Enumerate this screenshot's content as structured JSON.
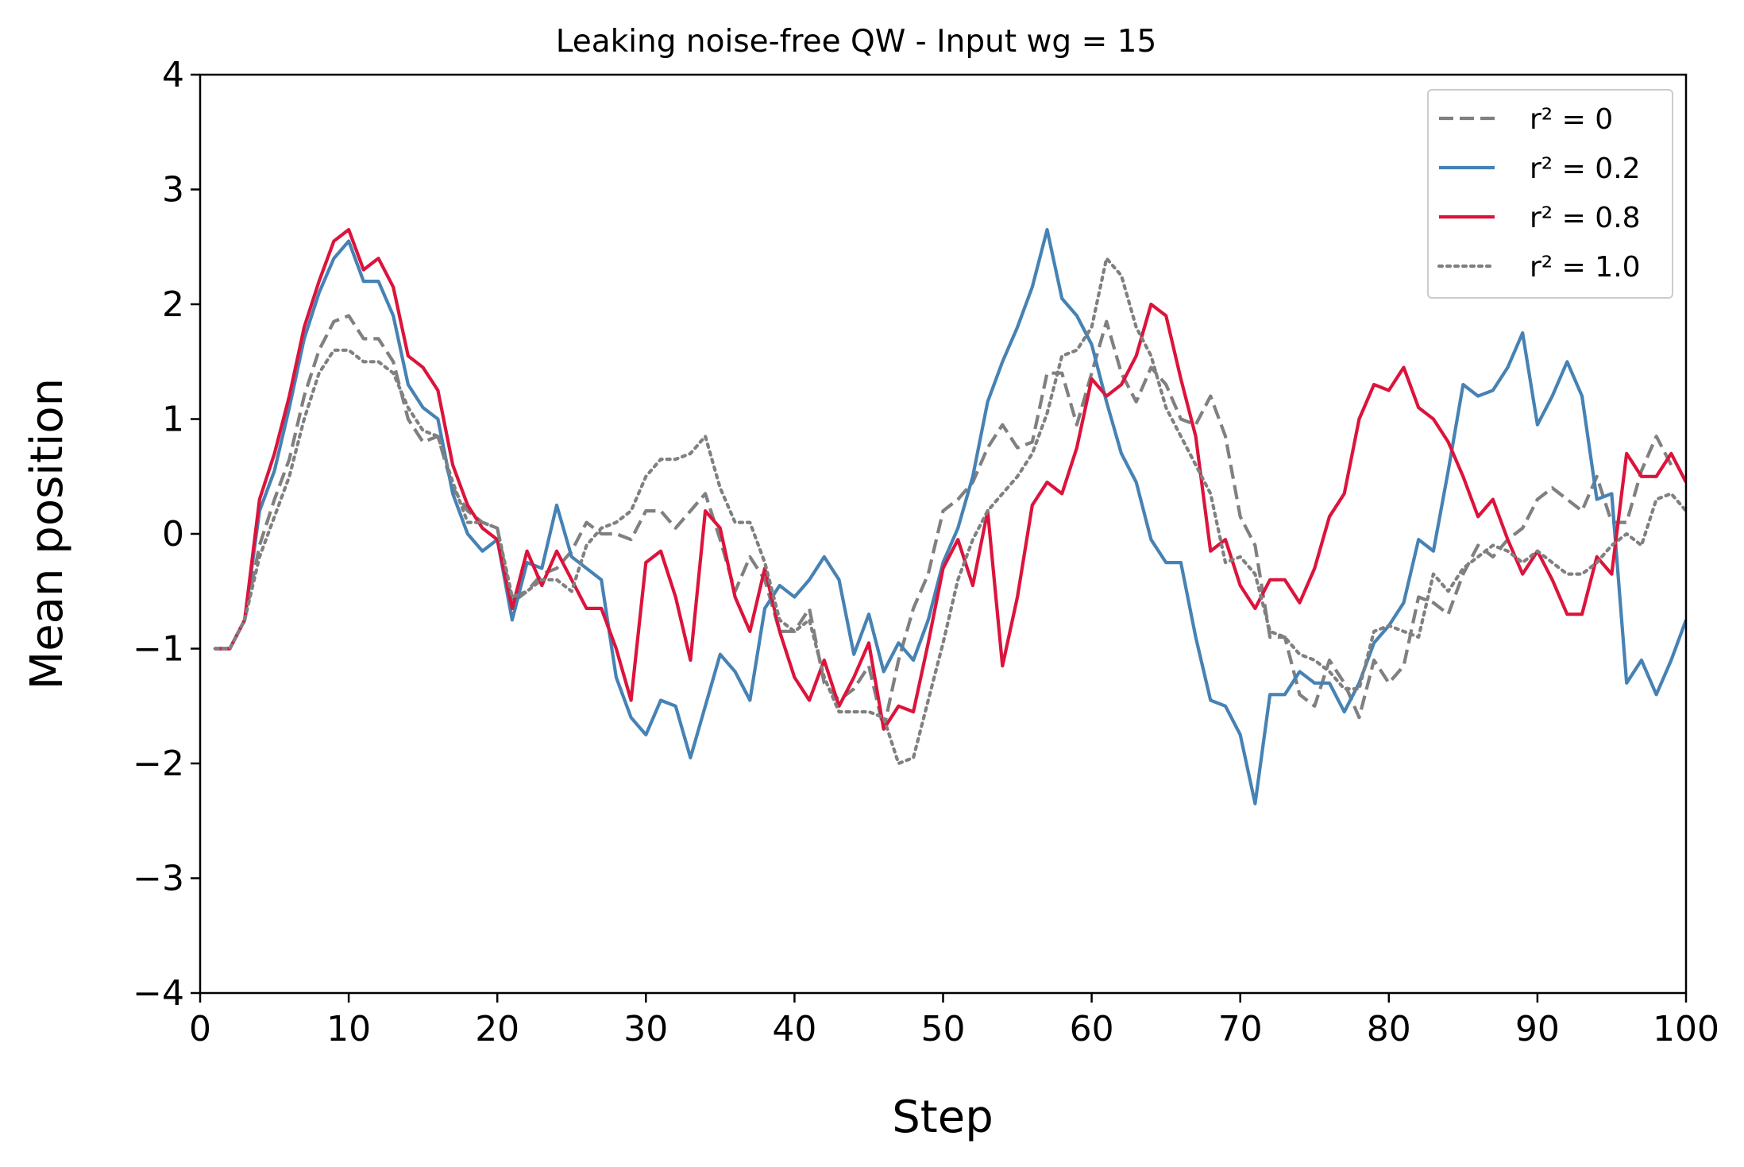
{
  "chart_data": {
    "type": "line",
    "title": "Leaking noise-free QW - Input wg = 15",
    "xlabel": "Step",
    "ylabel": "Mean position",
    "xlim": [
      0,
      100
    ],
    "ylim": [
      -4,
      4
    ],
    "xticks": [
      0,
      10,
      20,
      30,
      40,
      50,
      60,
      70,
      80,
      90,
      100
    ],
    "yticks": [
      4,
      3,
      2,
      1,
      0,
      -1,
      -2,
      -3,
      -4
    ],
    "xtick_labels": [
      "0",
      "10",
      "20",
      "30",
      "40",
      "50",
      "60",
      "70",
      "80",
      "90",
      "100"
    ],
    "ytick_labels": [
      "4",
      "3",
      "2",
      "1",
      "0",
      "−1",
      "−2",
      "−3",
      "−4"
    ],
    "grid": false,
    "legend_position": "top-right",
    "x_start": 1,
    "series": [
      {
        "name": "r² = 0",
        "legend_label": "r² = 0",
        "color": "#808080",
        "style": "dashed",
        "values": [
          -1.0,
          -1.0,
          -0.75,
          -0.1,
          0.3,
          0.65,
          1.2,
          1.6,
          1.85,
          1.9,
          1.7,
          1.7,
          1.5,
          1.0,
          0.8,
          0.85,
          0.4,
          0.2,
          0.1,
          0.05,
          -0.6,
          -0.5,
          -0.35,
          -0.3,
          -0.15,
          0.1,
          0.0,
          0.0,
          -0.05,
          0.2,
          0.2,
          0.05,
          0.2,
          0.35,
          -0.05,
          -0.5,
          -0.2,
          -0.4,
          -0.85,
          -0.85,
          -0.65,
          -1.3,
          -1.45,
          -1.35,
          -1.15,
          -1.7,
          -1.1,
          -0.65,
          -0.35,
          0.2,
          0.3,
          0.45,
          0.75,
          0.95,
          0.75,
          0.8,
          1.4,
          1.4,
          0.95,
          1.4,
          1.85,
          1.4,
          1.15,
          1.45,
          1.3,
          1.0,
          0.95,
          1.2,
          0.85,
          0.15,
          -0.1,
          -0.9,
          -0.9,
          -1.4,
          -1.5,
          -1.1,
          -1.3,
          -1.6,
          -1.1,
          -1.3,
          -1.15,
          -0.55,
          -0.6,
          -0.7,
          -0.35,
          -0.1,
          -0.2,
          -0.05,
          0.05,
          0.3,
          0.4,
          0.3,
          0.2,
          0.5,
          0.1,
          0.1,
          0.55,
          0.85,
          0.6
        ]
      },
      {
        "name": "r² = 0.2",
        "legend_label": "r² = 0.2",
        "color": "#4682b4",
        "style": "solid",
        "values": [
          -1.0,
          -1.0,
          -0.75,
          0.2,
          0.55,
          1.1,
          1.7,
          2.1,
          2.4,
          2.55,
          2.2,
          2.2,
          1.9,
          1.3,
          1.1,
          1.0,
          0.35,
          0.0,
          -0.15,
          -0.05,
          -0.75,
          -0.25,
          -0.3,
          0.25,
          -0.2,
          -0.3,
          -0.4,
          -1.25,
          -1.6,
          -1.75,
          -1.45,
          -1.5,
          -1.95,
          -1.5,
          -1.05,
          -1.2,
          -1.45,
          -0.65,
          -0.45,
          -0.55,
          -0.4,
          -0.2,
          -0.4,
          -1.05,
          -0.7,
          -1.2,
          -0.95,
          -1.1,
          -0.75,
          -0.25,
          0.05,
          0.5,
          1.15,
          1.5,
          1.8,
          2.15,
          2.65,
          2.05,
          1.9,
          1.65,
          1.15,
          0.7,
          0.45,
          -0.05,
          -0.25,
          -0.25,
          -0.9,
          -1.45,
          -1.5,
          -1.75,
          -2.35,
          -1.4,
          -1.4,
          -1.2,
          -1.3,
          -1.3,
          -1.55,
          -1.3,
          -0.95,
          -0.8,
          -0.6,
          -0.05,
          -0.15,
          0.55,
          1.3,
          1.2,
          1.25,
          1.45,
          1.75,
          0.95,
          1.2,
          1.5,
          1.2,
          0.3,
          0.35,
          -1.3,
          -1.1,
          -1.4,
          -1.1,
          -0.75
        ]
      },
      {
        "name": "r² = 0.8",
        "legend_label": "r² = 0.8",
        "color": "#dc143c",
        "style": "solid",
        "values": [
          -1.0,
          -1.0,
          -0.75,
          0.3,
          0.7,
          1.2,
          1.8,
          2.2,
          2.55,
          2.65,
          2.3,
          2.4,
          2.15,
          1.55,
          1.45,
          1.25,
          0.6,
          0.25,
          0.05,
          -0.05,
          -0.65,
          -0.15,
          -0.45,
          -0.15,
          -0.4,
          -0.65,
          -0.65,
          -1.0,
          -1.45,
          -0.25,
          -0.15,
          -0.55,
          -1.1,
          0.2,
          0.05,
          -0.55,
          -0.85,
          -0.3,
          -0.85,
          -1.25,
          -1.45,
          -1.1,
          -1.5,
          -1.25,
          -0.95,
          -1.7,
          -1.5,
          -1.55,
          -0.95,
          -0.3,
          -0.05,
          -0.45,
          0.2,
          -1.15,
          -0.55,
          0.25,
          0.45,
          0.35,
          0.75,
          1.35,
          1.2,
          1.3,
          1.55,
          2.0,
          1.9,
          1.35,
          0.85,
          -0.15,
          -0.05,
          -0.45,
          -0.65,
          -0.4,
          -0.4,
          -0.6,
          -0.3,
          0.15,
          0.35,
          1.0,
          1.3,
          1.25,
          1.45,
          1.1,
          1.0,
          0.8,
          0.5,
          0.15,
          0.3,
          -0.05,
          -0.35,
          -0.15,
          -0.4,
          -0.7,
          -0.7,
          -0.2,
          -0.35,
          0.7,
          0.5,
          0.5,
          0.7,
          0.45
        ]
      },
      {
        "name": "r² = 1.0",
        "legend_label": "r² = 1.0",
        "color": "#808080",
        "style": "dotted",
        "values": [
          -1.0,
          -1.0,
          -0.75,
          -0.2,
          0.15,
          0.5,
          1.0,
          1.4,
          1.6,
          1.6,
          1.5,
          1.5,
          1.4,
          1.1,
          0.9,
          0.85,
          0.45,
          0.1,
          0.1,
          0.05,
          -0.55,
          -0.5,
          -0.4,
          -0.4,
          -0.5,
          -0.1,
          0.05,
          0.1,
          0.2,
          0.5,
          0.65,
          0.65,
          0.7,
          0.85,
          0.4,
          0.1,
          0.1,
          -0.25,
          -0.75,
          -0.85,
          -0.75,
          -1.25,
          -1.55,
          -1.55,
          -1.55,
          -1.6,
          -2.0,
          -1.95,
          -1.45,
          -0.95,
          -0.4,
          -0.05,
          0.2,
          0.35,
          0.5,
          0.7,
          1.05,
          1.55,
          1.6,
          1.8,
          2.4,
          2.25,
          1.8,
          1.55,
          1.1,
          0.85,
          0.6,
          0.35,
          -0.25,
          -0.2,
          -0.35,
          -0.85,
          -0.9,
          -1.05,
          -1.1,
          -1.2,
          -1.35,
          -1.35,
          -0.85,
          -0.8,
          -0.85,
          -0.9,
          -0.35,
          -0.5,
          -0.3,
          -0.2,
          -0.1,
          -0.15,
          -0.25,
          -0.15,
          -0.25,
          -0.35,
          -0.35,
          -0.25,
          -0.1,
          0.0,
          -0.1,
          0.3,
          0.35,
          0.2
        ]
      }
    ]
  }
}
